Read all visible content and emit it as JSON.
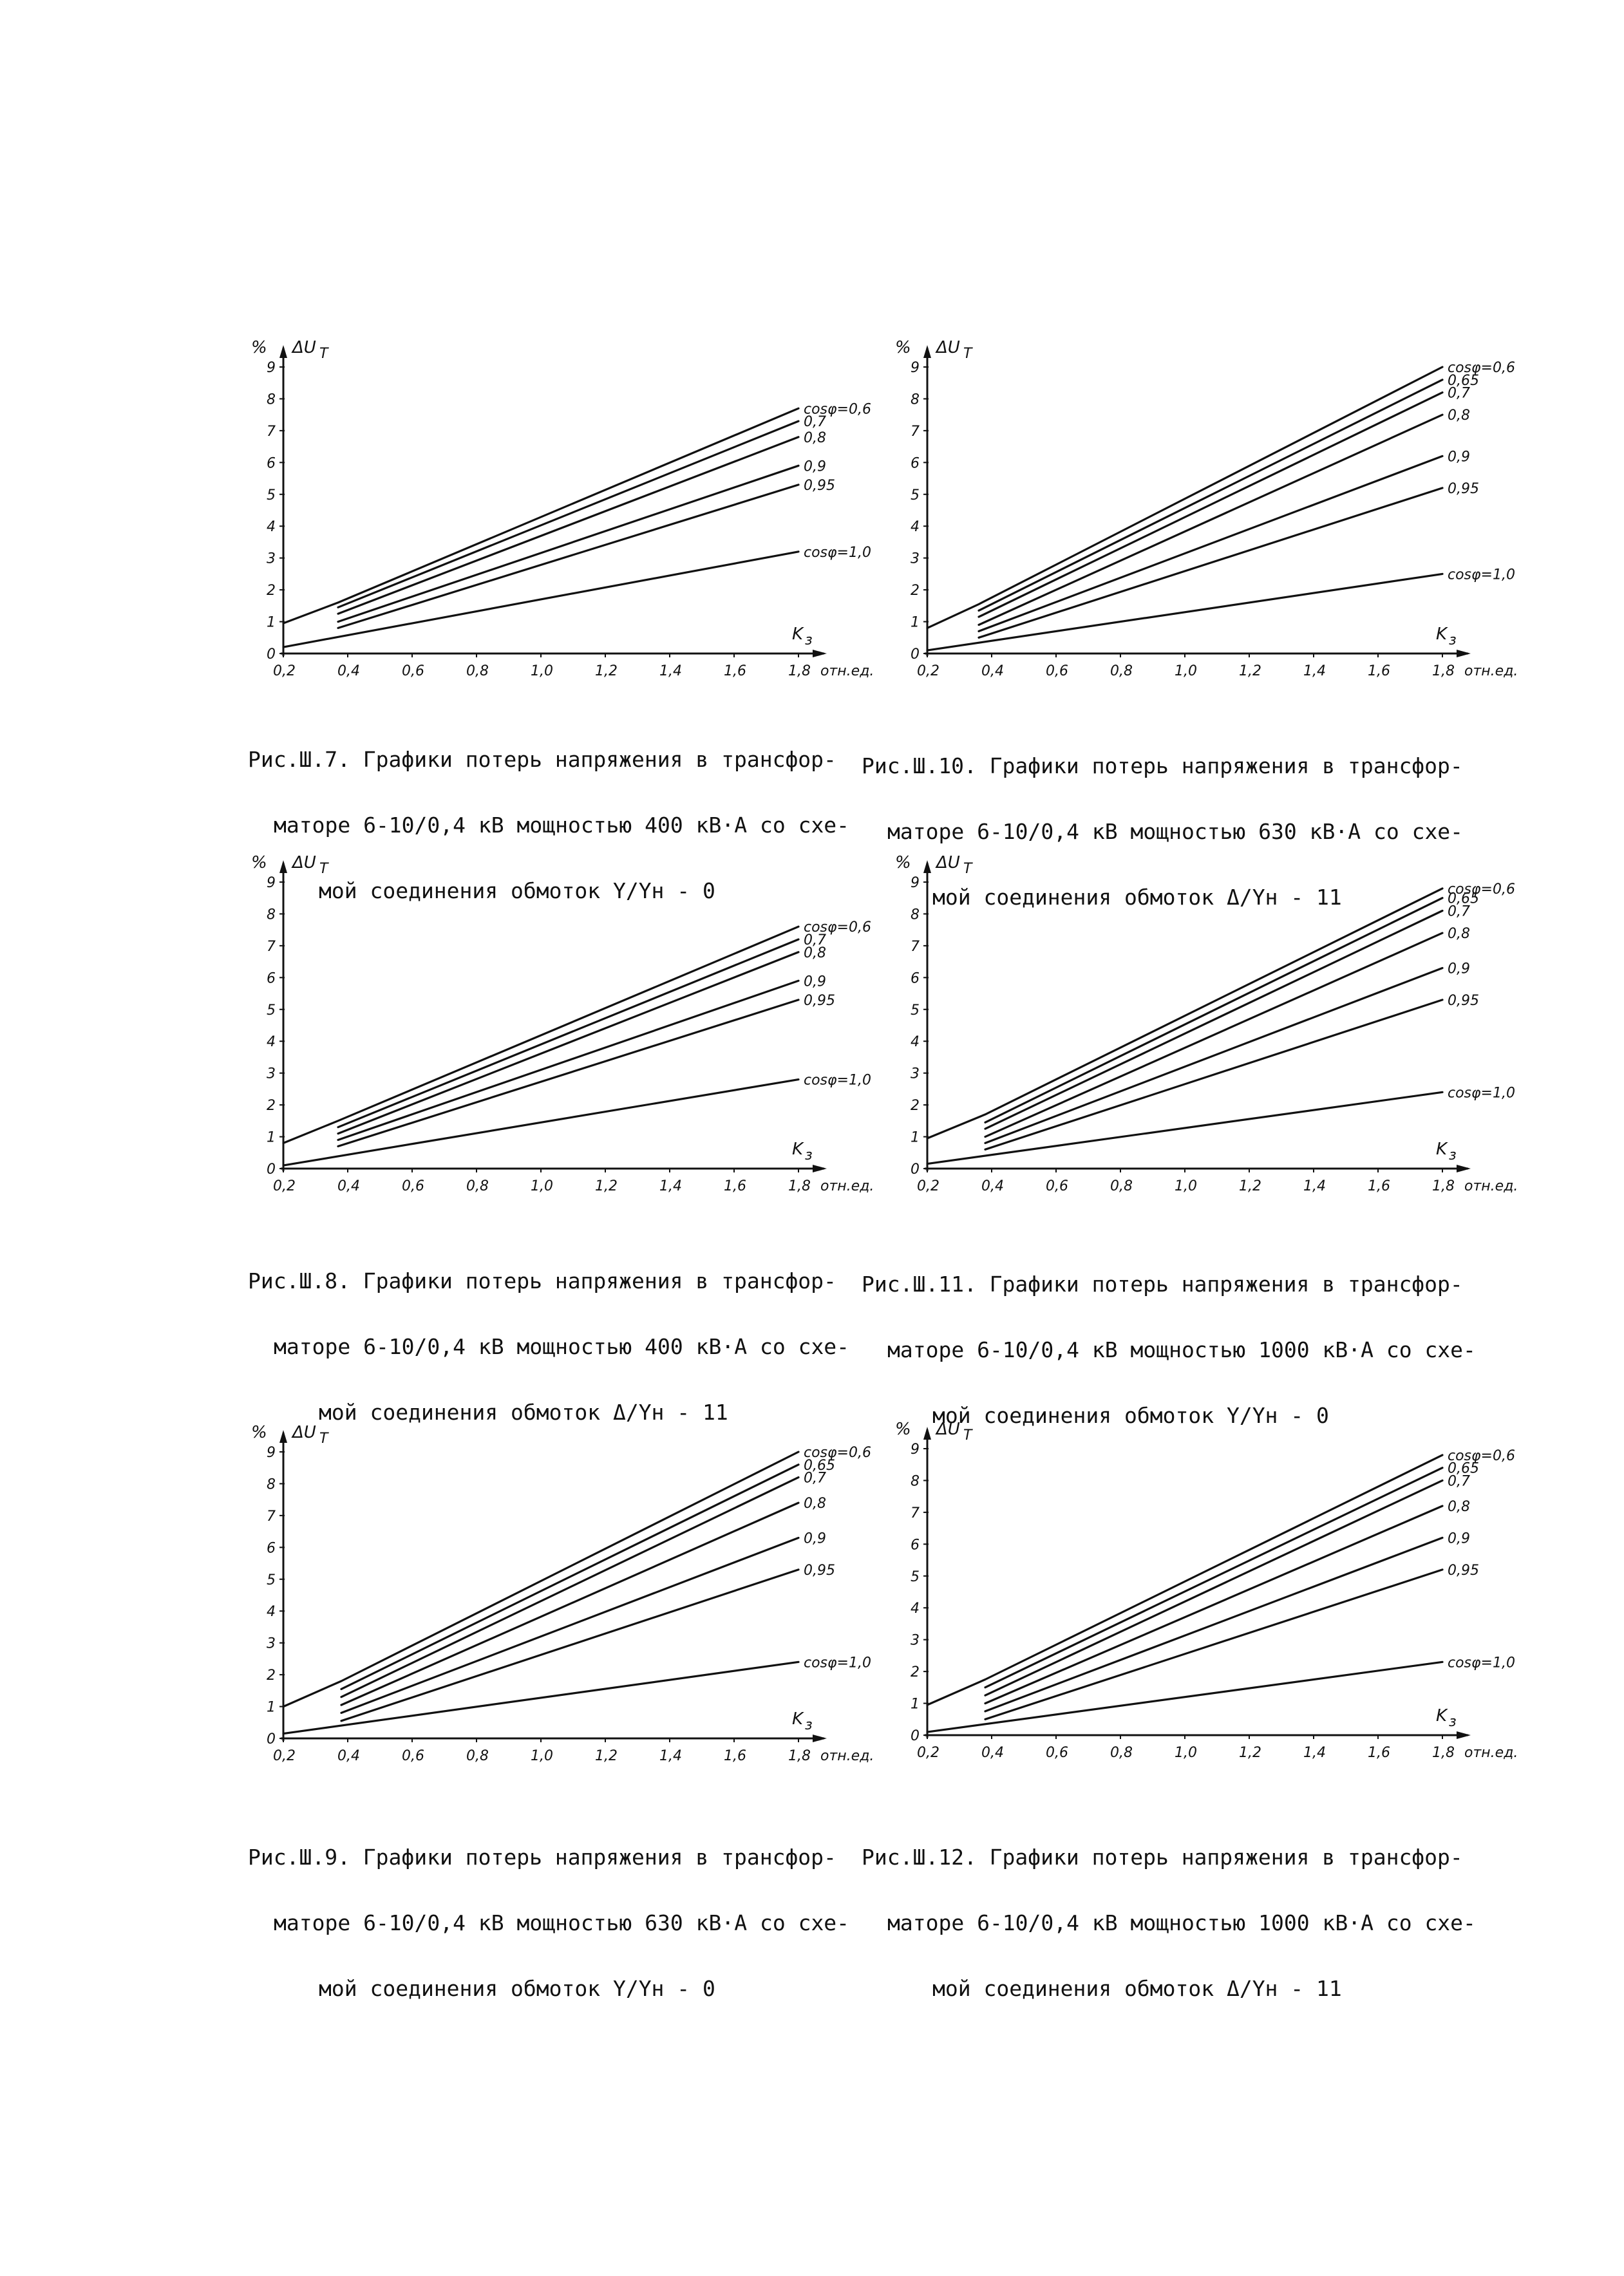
{
  "chart_data": [
    {
      "type": "line",
      "y_unit": "%",
      "ylabel": "ΔU",
      "ylabel_sub": "T",
      "xlabel": "K",
      "xlabel_sub": "з",
      "xlim": [
        0.2,
        1.8
      ],
      "ylim": [
        0,
        9
      ],
      "xticks": [
        "0,2",
        "0,4",
        "0,6",
        "0,8",
        "1,0",
        "1,2",
        "1,4",
        "1,6",
        "1,8"
      ],
      "xunit": "отн.ед.",
      "yticks": [
        "0",
        "1",
        "2",
        "3",
        "4",
        "5",
        "6",
        "7",
        "8",
        "9"
      ],
      "series": [
        {
          "name": "cosφ=0,6",
          "x": [
            0.2,
            0.37,
            1.8
          ],
          "y": [
            0.95,
            1.6,
            7.7
          ]
        },
        {
          "name": "0,7",
          "x": [
            0.37,
            1.8
          ],
          "y": [
            1.45,
            7.3
          ]
        },
        {
          "name": "0,8",
          "x": [
            0.37,
            1.8
          ],
          "y": [
            1.25,
            6.8
          ]
        },
        {
          "name": "0,9",
          "x": [
            0.37,
            1.8
          ],
          "y": [
            1.0,
            5.9
          ]
        },
        {
          "name": "0,95",
          "x": [
            0.37,
            1.8
          ],
          "y": [
            0.8,
            5.3
          ]
        },
        {
          "name": "cosφ=1,0",
          "x": [
            0.2,
            1.8
          ],
          "y": [
            0.2,
            3.2
          ]
        }
      ],
      "caption": [
        "Рис.Ш.7. Графики потерь напряжения в трансфор-",
        "маторе 6-10/0,4 кВ мощностью 400 кВ·А со схе-",
        "мой соединения обмоток Y/Yн - 0"
      ]
    },
    {
      "type": "line",
      "y_unit": "%",
      "ylabel": "ΔU",
      "ylabel_sub": "T",
      "xlabel": "K",
      "xlabel_sub": "з",
      "xlim": [
        0.2,
        1.8
      ],
      "ylim": [
        0,
        9
      ],
      "xticks": [
        "0,2",
        "0,4",
        "0,6",
        "0,8",
        "1,0",
        "1,2",
        "1,4",
        "1,6",
        "1,8"
      ],
      "xunit": "отн.ед.",
      "yticks": [
        "0",
        "1",
        "2",
        "3",
        "4",
        "5",
        "6",
        "7",
        "8",
        "9"
      ],
      "series": [
        {
          "name": "cosφ=0,6",
          "x": [
            0.2,
            0.36,
            1.8
          ],
          "y": [
            0.8,
            1.55,
            9.0
          ]
        },
        {
          "name": "0,65",
          "x": [
            0.36,
            1.8
          ],
          "y": [
            1.35,
            8.6
          ]
        },
        {
          "name": "0,7",
          "x": [
            0.36,
            1.8
          ],
          "y": [
            1.15,
            8.2
          ]
        },
        {
          "name": "0,8",
          "x": [
            0.36,
            1.8
          ],
          "y": [
            0.9,
            7.5
          ]
        },
        {
          "name": "0,9",
          "x": [
            0.36,
            1.8
          ],
          "y": [
            0.7,
            6.2
          ]
        },
        {
          "name": "0,95",
          "x": [
            0.36,
            1.8
          ],
          "y": [
            0.5,
            5.2
          ]
        },
        {
          "name": "cosφ=1,0",
          "x": [
            0.2,
            1.8
          ],
          "y": [
            0.1,
            2.5
          ]
        }
      ],
      "caption": [
        "Рис.Ш.10. Графики потерь напряжения в трансфор-",
        "маторе 6-10/0,4 кВ мощностью 630 кВ·А со схе-",
        "мой соединения обмоток Δ/Yн - 11"
      ]
    },
    {
      "type": "line",
      "y_unit": "%",
      "ylabel": "ΔU",
      "ylabel_sub": "T",
      "xlabel": "K",
      "xlabel_sub": "з",
      "xlim": [
        0.2,
        1.8
      ],
      "ylim": [
        0,
        9
      ],
      "xticks": [
        "0,2",
        "0,4",
        "0,6",
        "0,8",
        "1,0",
        "1,2",
        "1,4",
        "1,6",
        "1,8"
      ],
      "xunit": "отн.ед.",
      "yticks": [
        "0",
        "1",
        "2",
        "3",
        "4",
        "5",
        "6",
        "7",
        "8",
        "9"
      ],
      "series": [
        {
          "name": "cosφ=0,6",
          "x": [
            0.2,
            0.37,
            1.8
          ],
          "y": [
            0.8,
            1.5,
            7.6
          ]
        },
        {
          "name": "0,7",
          "x": [
            0.37,
            1.8
          ],
          "y": [
            1.3,
            7.2
          ]
        },
        {
          "name": "0,8",
          "x": [
            0.37,
            1.8
          ],
          "y": [
            1.1,
            6.8
          ]
        },
        {
          "name": "0,9",
          "x": [
            0.37,
            1.8
          ],
          "y": [
            0.9,
            5.9
          ]
        },
        {
          "name": "0,95",
          "x": [
            0.37,
            1.8
          ],
          "y": [
            0.7,
            5.3
          ]
        },
        {
          "name": "cosφ=1,0",
          "x": [
            0.2,
            1.8
          ],
          "y": [
            0.1,
            2.8
          ]
        }
      ],
      "caption": [
        "Рис.Ш.8. Графики потерь напряжения в трансфор-",
        "маторе 6-10/0,4 кВ мощностью 400 кВ·А со схе-",
        "мой соединения обмоток Δ/Yн - 11"
      ]
    },
    {
      "type": "line",
      "y_unit": "%",
      "ylabel": "ΔU",
      "ylabel_sub": "T",
      "xlabel": "K",
      "xlabel_sub": "з",
      "xlim": [
        0.2,
        1.8
      ],
      "ylim": [
        0,
        9
      ],
      "xticks": [
        "0,2",
        "0,4",
        "0,6",
        "0,8",
        "1,0",
        "1,2",
        "1,4",
        "1,6",
        "1,8"
      ],
      "xunit": "отн.ед.",
      "yticks": [
        "0",
        "1",
        "2",
        "3",
        "4",
        "5",
        "6",
        "7",
        "8",
        "9"
      ],
      "series": [
        {
          "name": "cosφ=0,6",
          "x": [
            0.2,
            0.38,
            1.8
          ],
          "y": [
            0.95,
            1.7,
            8.8
          ]
        },
        {
          "name": "0,65",
          "x": [
            0.38,
            1.8
          ],
          "y": [
            1.45,
            8.5
          ]
        },
        {
          "name": "0,7",
          "x": [
            0.38,
            1.8
          ],
          "y": [
            1.25,
            8.1
          ]
        },
        {
          "name": "0,8",
          "x": [
            0.38,
            1.8
          ],
          "y": [
            1.0,
            7.4
          ]
        },
        {
          "name": "0,9",
          "x": [
            0.38,
            1.8
          ],
          "y": [
            0.8,
            6.3
          ]
        },
        {
          "name": "0,95",
          "x": [
            0.38,
            1.8
          ],
          "y": [
            0.6,
            5.3
          ]
        },
        {
          "name": "cosφ=1,0",
          "x": [
            0.2,
            1.8
          ],
          "y": [
            0.15,
            2.4
          ]
        }
      ],
      "caption": [
        "Рис.Ш.11. Графики потерь напряжения в трансфор-",
        "маторе 6-10/0,4 кВ мощностью 1000 кВ·А со схе-",
        "мой соединения обмоток Y/Yн - 0"
      ]
    },
    {
      "type": "line",
      "y_unit": "%",
      "ylabel": "ΔU",
      "ylabel_sub": "T",
      "xlabel": "K",
      "xlabel_sub": "з",
      "xlim": [
        0.2,
        1.8
      ],
      "ylim": [
        0,
        9
      ],
      "xticks": [
        "0,2",
        "0,4",
        "0,6",
        "0,8",
        "1,0",
        "1,2",
        "1,4",
        "1,6",
        "1,8"
      ],
      "xunit": "отн.ед.",
      "yticks": [
        "0",
        "1",
        "2",
        "3",
        "4",
        "5",
        "6",
        "7",
        "8",
        "9"
      ],
      "series": [
        {
          "name": "cosφ=0,6",
          "x": [
            0.2,
            0.38,
            1.8
          ],
          "y": [
            1.0,
            1.8,
            9.0
          ]
        },
        {
          "name": "0,65",
          "x": [
            0.38,
            1.8
          ],
          "y": [
            1.55,
            8.6
          ]
        },
        {
          "name": "0,7",
          "x": [
            0.38,
            1.8
          ],
          "y": [
            1.3,
            8.2
          ]
        },
        {
          "name": "0,8",
          "x": [
            0.38,
            1.8
          ],
          "y": [
            1.05,
            7.4
          ]
        },
        {
          "name": "0,9",
          "x": [
            0.38,
            1.8
          ],
          "y": [
            0.8,
            6.3
          ]
        },
        {
          "name": "0,95",
          "x": [
            0.38,
            1.8
          ],
          "y": [
            0.55,
            5.3
          ]
        },
        {
          "name": "cosφ=1,0",
          "x": [
            0.2,
            1.8
          ],
          "y": [
            0.15,
            2.4
          ]
        }
      ],
      "caption": [
        "Рис.Ш.9. Графики потерь напряжения в трансфор-",
        "маторе 6-10/0,4 кВ мощностью 630 кВ·А со схе-",
        "мой соединения обмоток Y/Yн - 0"
      ]
    },
    {
      "type": "line",
      "y_unit": "%",
      "ylabel": "ΔU",
      "ylabel_sub": "T",
      "xlabel": "K",
      "xlabel_sub": "з",
      "xlim": [
        0.2,
        1.8
      ],
      "ylim": [
        0,
        9
      ],
      "xticks": [
        "0,2",
        "0,4",
        "0,6",
        "0,8",
        "1,0",
        "1,2",
        "1,4",
        "1,6",
        "1,8"
      ],
      "xunit": "отн.ед.",
      "yticks": [
        "0",
        "1",
        "2",
        "3",
        "4",
        "5",
        "6",
        "7",
        "8",
        "9"
      ],
      "series": [
        {
          "name": "cosφ=0,6",
          "x": [
            0.2,
            0.38,
            1.8
          ],
          "y": [
            0.95,
            1.75,
            8.8
          ]
        },
        {
          "name": "0,65",
          "x": [
            0.38,
            1.8
          ],
          "y": [
            1.5,
            8.4
          ]
        },
        {
          "name": "0,7",
          "x": [
            0.38,
            1.8
          ],
          "y": [
            1.25,
            8.0
          ]
        },
        {
          "name": "0,8",
          "x": [
            0.38,
            1.8
          ],
          "y": [
            1.0,
            7.2
          ]
        },
        {
          "name": "0,9",
          "x": [
            0.38,
            1.8
          ],
          "y": [
            0.75,
            6.2
          ]
        },
        {
          "name": "0,95",
          "x": [
            0.38,
            1.8
          ],
          "y": [
            0.5,
            5.2
          ]
        },
        {
          "name": "cosφ=1,0",
          "x": [
            0.2,
            1.8
          ],
          "y": [
            0.1,
            2.3
          ]
        }
      ],
      "caption": [
        "Рис.Ш.12. Графики потерь напряжения в трансфор-",
        "маторе 6-10/0,4 кВ мощностью 1000 кВ·А со схе-",
        "мой соединения обмоток Δ/Yн - 11"
      ]
    }
  ]
}
